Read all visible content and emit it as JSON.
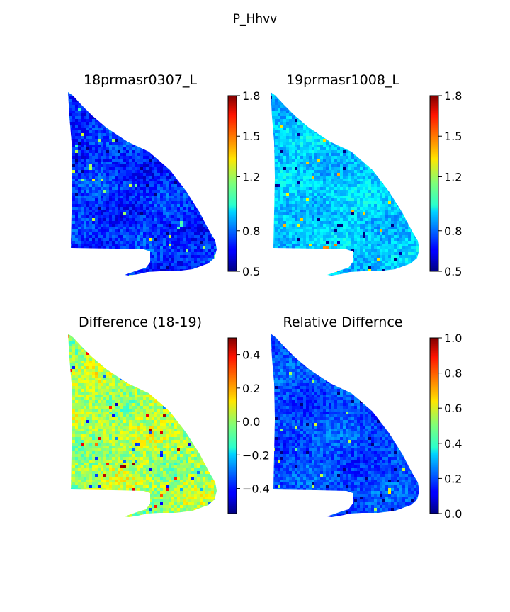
{
  "figure": {
    "suptitle": "P_Hhvv"
  },
  "chart_data": [
    {
      "type": "heatmap",
      "title": "18prmasr0307_L",
      "colormap": "jet",
      "vmin": 0.5,
      "vmax": 1.8,
      "colorbar_ticks": [
        "0.5",
        "0.8",
        "1.2",
        "1.5",
        "1.8"
      ],
      "dominant_level": 0.72,
      "spread": 0.12,
      "axes": "off"
    },
    {
      "type": "heatmap",
      "title": "19prmasr1008_L",
      "colormap": "jet",
      "vmin": 0.5,
      "vmax": 1.8,
      "colorbar_ticks": [
        "0.5",
        "0.8",
        "1.2",
        "1.5",
        "1.8"
      ],
      "dominant_level": 0.92,
      "spread": 0.1,
      "axes": "off"
    },
    {
      "type": "heatmap",
      "title": "Difference (18-19)",
      "colormap": "jet",
      "vmin": -0.55,
      "vmax": 0.5,
      "colorbar_ticks": [
        "−0.4",
        "−0.2",
        "0.0",
        "0.2",
        "0.4"
      ],
      "dominant_level": 0.02,
      "spread": 0.12,
      "axes": "off"
    },
    {
      "type": "heatmap",
      "title": "Relative Differnce",
      "colormap": "jet",
      "vmin": 0.0,
      "vmax": 1.0,
      "colorbar_ticks": [
        "0.0",
        "0.2",
        "0.4",
        "0.6",
        "0.8",
        "1.0"
      ],
      "dominant_level": 0.2,
      "spread": 0.08,
      "axes": "off"
    }
  ]
}
